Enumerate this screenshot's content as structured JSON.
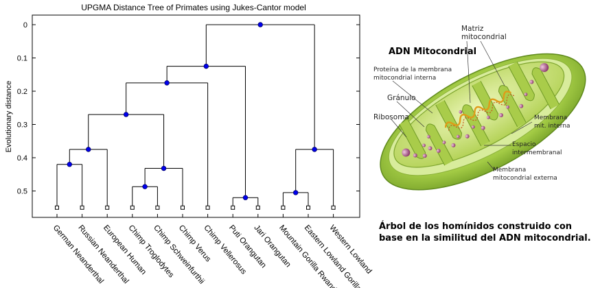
{
  "tree": {
    "title": "UPGMA Distance Tree of Primates using Jukes-Cantor model",
    "ylabel": "Evolutionary distance",
    "yticks": [
      "0",
      "0.1",
      "0.2",
      "0.3",
      "0.4",
      "0.5"
    ],
    "leaves": [
      "German Neanderthal",
      "Russian Neanderthal",
      "European Human",
      "Chimp Troglodytes",
      "Chimp Schweinfurthii",
      "Chimp Verus",
      "Chimp Vellerosus",
      "Puti Orangutan",
      "Jari Orangutan",
      "Mountain Gorilla Rwanda",
      "Eastern Lowland Gorilla",
      "Western Lowland"
    ]
  },
  "chart_data": {
    "type": "dendrogram",
    "title": "UPGMA Distance Tree of Primates using Jukes-Cantor model",
    "ylabel": "Evolutionary distance",
    "ylim": [
      0,
      0.58
    ],
    "leaf_height": 0.55,
    "nodes": [
      {
        "id": "n1",
        "children": [
          0,
          1
        ],
        "height": 0.42
      },
      {
        "id": "n2",
        "children": [
          "n1",
          2
        ],
        "height": 0.375
      },
      {
        "id": "n3",
        "children": [
          3,
          4
        ],
        "height": 0.487
      },
      {
        "id": "n4",
        "children": [
          "n3",
          5
        ],
        "height": 0.432
      },
      {
        "id": "n5",
        "children": [
          "n2",
          "n4"
        ],
        "height": 0.27
      },
      {
        "id": "n6",
        "children": [
          "n5",
          6
        ],
        "height": 0.175
      },
      {
        "id": "n7",
        "children": [
          7,
          8
        ],
        "height": 0.52
      },
      {
        "id": "n8",
        "children": [
          "n6",
          "n7"
        ],
        "height": 0.125
      },
      {
        "id": "n9",
        "children": [
          9,
          10
        ],
        "height": 0.505
      },
      {
        "id": "n10",
        "children": [
          "n9",
          11
        ],
        "height": 0.375
      },
      {
        "id": "n11",
        "children": [
          "n8",
          "n10"
        ],
        "height": 0.0
      }
    ]
  },
  "diagram": {
    "title": "ADN Mitocondrial",
    "labels": {
      "matriz": [
        "Matriz",
        "mitocondrial"
      ],
      "proteina": [
        "Proteína de la membrana",
        "mitocondrial interna"
      ],
      "granulo": "Gránulo",
      "ribosoma": "Ribosoma",
      "membrana_interna": [
        "Membrana",
        "mit. interna"
      ],
      "espacio": [
        "Espacio",
        "intermembranal"
      ],
      "membrana_externa": [
        "Membrana",
        "mitocondrial externa"
      ]
    },
    "colors": {
      "outer": "#9cc63a",
      "inner": "#c9e07a",
      "matrix": "#b8d35a",
      "dna": "#e0a020",
      "granule": "#9a4a7a"
    }
  },
  "caption": "Árbol de los homínidos construido con base en la similitud del ADN mitocondrial."
}
